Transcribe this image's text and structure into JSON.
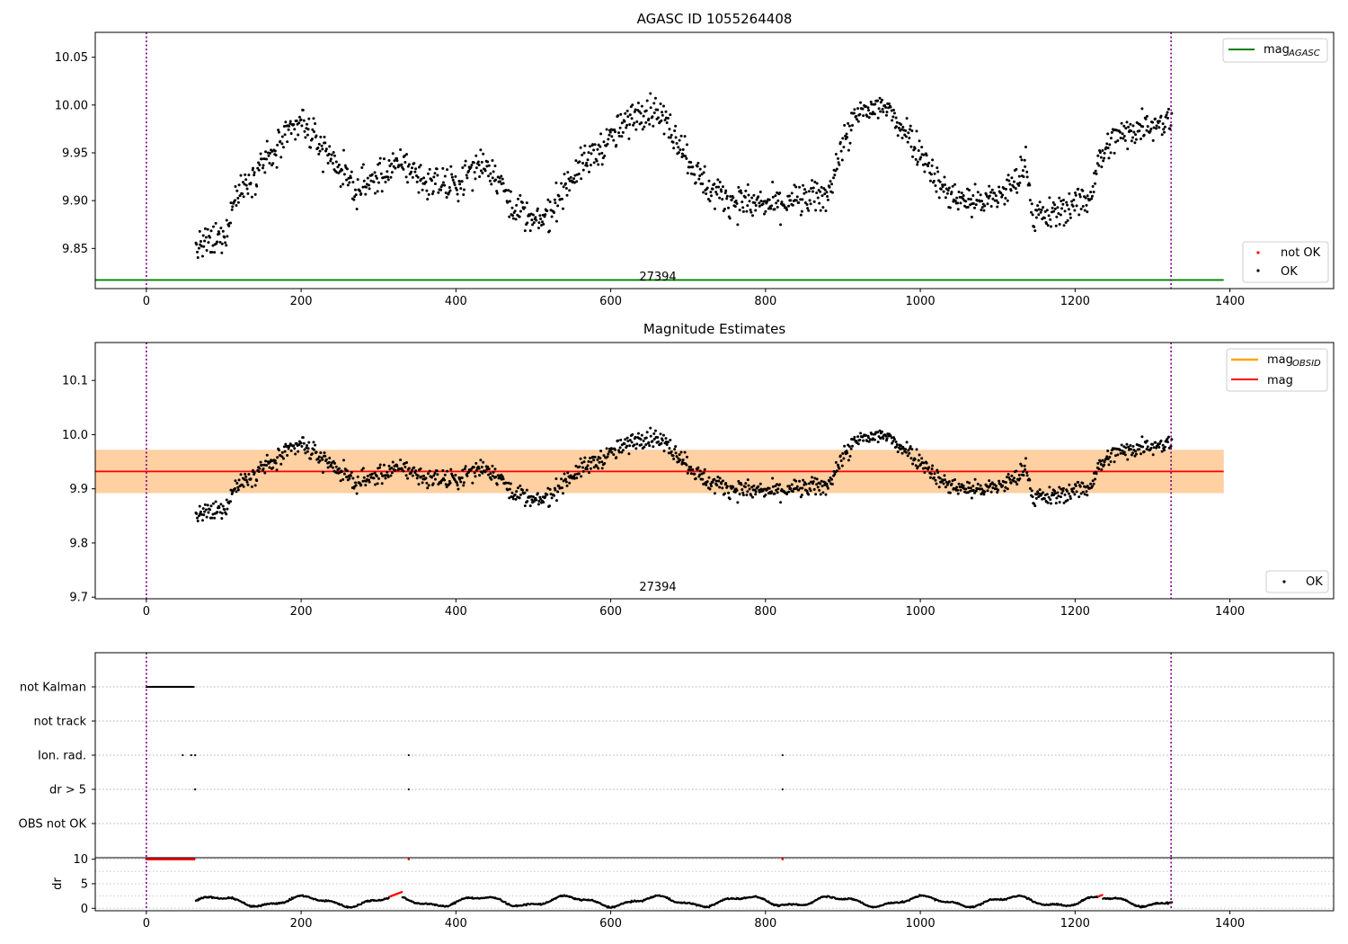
{
  "chart_data": [
    {
      "type": "scatter",
      "title": "AGASC ID 1055264408",
      "xlim": [
        -66,
        1534
      ],
      "ylim": [
        9.808,
        10.076
      ],
      "xticks": [
        0,
        200,
        400,
        600,
        800,
        1000,
        1200,
        1400
      ],
      "yticks": [
        9.85,
        9.9,
        9.95,
        10.0,
        10.05
      ],
      "vlines": [
        0,
        1324
      ],
      "text_label": "27394",
      "series": [
        {
          "name": "mag",
          "sub": "AGASC",
          "type": "hline",
          "y": 9.817,
          "xrange": [
            -66,
            1392
          ],
          "color": "#008000"
        },
        {
          "name": "not OK",
          "type": "scatter",
          "color": "#ff0000",
          "points": []
        },
        {
          "name": "OK",
          "type": "scatter",
          "color": "#000000",
          "from_trend": true
        }
      ],
      "trend": {
        "x_start": 64,
        "x_end": 1325,
        "knots": [
          [
            64,
            9.85
          ],
          [
            80,
            9.855
          ],
          [
            100,
            9.86
          ],
          [
            115,
            9.905
          ],
          [
            140,
            9.93
          ],
          [
            170,
            9.955
          ],
          [
            200,
            9.985
          ],
          [
            215,
            9.965
          ],
          [
            240,
            9.945
          ],
          [
            270,
            9.91
          ],
          [
            300,
            9.925
          ],
          [
            330,
            9.94
          ],
          [
            360,
            9.92
          ],
          [
            400,
            9.915
          ],
          [
            430,
            9.94
          ],
          [
            450,
            9.93
          ],
          [
            470,
            9.9
          ],
          [
            500,
            9.875
          ],
          [
            520,
            9.885
          ],
          [
            540,
            9.915
          ],
          [
            560,
            9.935
          ],
          [
            600,
            9.965
          ],
          [
            640,
            9.995
          ],
          [
            660,
            9.995
          ],
          [
            690,
            9.96
          ],
          [
            710,
            9.93
          ],
          [
            730,
            9.91
          ],
          [
            760,
            9.9
          ],
          [
            800,
            9.895
          ],
          [
            840,
            9.9
          ],
          [
            880,
            9.905
          ],
          [
            900,
            9.96
          ],
          [
            920,
            9.99
          ],
          [
            950,
            10.0
          ],
          [
            980,
            9.975
          ],
          [
            1010,
            9.94
          ],
          [
            1030,
            9.91
          ],
          [
            1060,
            9.9
          ],
          [
            1090,
            9.9
          ],
          [
            1120,
            9.915
          ],
          [
            1138,
            9.94
          ],
          [
            1145,
            9.885
          ],
          [
            1170,
            9.885
          ],
          [
            1195,
            9.895
          ],
          [
            1220,
            9.905
          ],
          [
            1230,
            9.94
          ],
          [
            1250,
            9.965
          ],
          [
            1290,
            9.98
          ],
          [
            1325,
            9.985
          ]
        ],
        "noise": 0.017
      }
    },
    {
      "type": "scatter",
      "title": "Magnitude Estimates",
      "xlim": [
        -66,
        1534
      ],
      "ylim": [
        9.697,
        10.17
      ],
      "xticks": [
        0,
        200,
        400,
        600,
        800,
        1000,
        1200,
        1400
      ],
      "yticks": [
        9.7,
        9.8,
        9.9,
        10.0,
        10.1
      ],
      "ytick_labels": [
        "9.7",
        "9.8",
        "9.9",
        "10.0",
        "10.1"
      ],
      "vlines": [
        0,
        1324
      ],
      "text_label": "27394",
      "bands": [
        {
          "y": [
            9.892,
            9.972
          ],
          "xrange": [
            -66,
            1392
          ],
          "color": "#ffc0cb",
          "opacity": 0.45
        },
        {
          "y": [
            9.892,
            9.972
          ],
          "xrange": [
            -66,
            1392
          ],
          "color": "#ffa500",
          "opacity": 0.3
        }
      ],
      "series": [
        {
          "name": "mag",
          "sub": "OBSID",
          "type": "hline",
          "y": 9.932,
          "xrange": [
            -66,
            1392
          ],
          "color": "#ffa500"
        },
        {
          "name": "mag",
          "type": "hline",
          "y": 9.932,
          "xrange": [
            -66,
            1392
          ],
          "color": "#ff0000"
        },
        {
          "name": "OK",
          "type": "scatter",
          "color": "#000000",
          "from_trend": true
        }
      ]
    },
    {
      "type": "scatter",
      "title": "",
      "xlim": [
        -66,
        1534
      ],
      "categories": [
        "not Kalman",
        "not track",
        "Ion. rad.",
        "dr > 5",
        "OBS not OK"
      ],
      "vlines": [
        0,
        1324
      ],
      "flags": {
        "not Kalman": {
          "ranges": [
            [
              0,
              62
            ]
          ],
          "points": []
        },
        "not track": {
          "ranges": [],
          "points": []
        },
        "Ion. rad.": {
          "ranges": [],
          "points": [
            47,
            58,
            63,
            339,
            822
          ]
        },
        "dr > 5": {
          "ranges": [],
          "points": [
            63,
            339,
            822
          ]
        },
        "OBS not OK": {
          "ranges": [],
          "points": []
        }
      }
    },
    {
      "type": "scatter",
      "title": "",
      "ylabel": "dr",
      "xlim": [
        -66,
        1534
      ],
      "ylim": [
        -0.5,
        10.3
      ],
      "xticks": [
        0,
        200,
        400,
        600,
        800,
        1000,
        1200,
        1400
      ],
      "yticks": [
        0,
        5,
        10
      ],
      "vlines": [
        0,
        1324
      ],
      "series": [
        {
          "name": "dr",
          "color": "#000000"
        },
        {
          "name": "dr (flagged)",
          "color": "#ff0000",
          "clipped_y": 10,
          "clipped_x": [
            [
              0,
              62
            ],
            [
              339,
              339
            ],
            [
              822,
              822
            ]
          ],
          "red_ranges": [
            [
              315,
              330
            ],
            [
              1230,
              1235
            ]
          ]
        }
      ]
    }
  ]
}
